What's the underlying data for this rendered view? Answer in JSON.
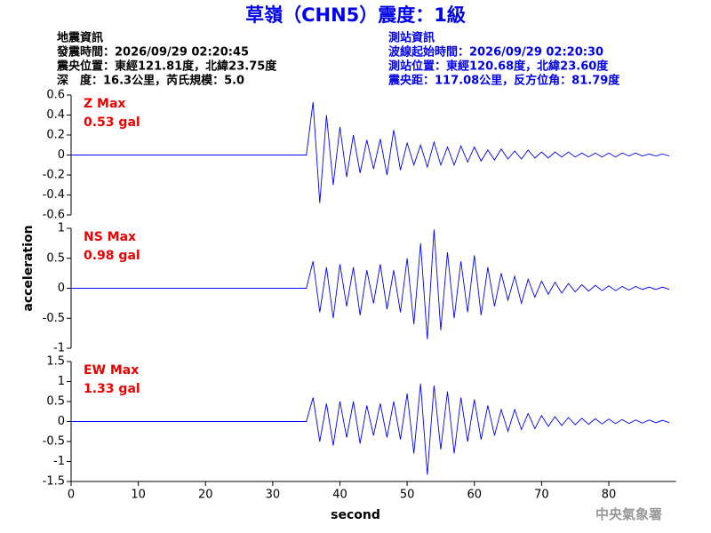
{
  "title": "草嶺（CHN5）震度：1級",
  "event_info": [
    "地震資訊",
    "發震時間：2026/09/29 02:20:45",
    "震央位置：東經121.81度，北緯23.75度",
    "深　度：16.3公里，芮氏規模：5.0"
  ],
  "station_info": [
    "測站資訊",
    "波線起始時間：2026/09/29 02:20:30",
    "測站位置：東經120.68度，北緯23.60度",
    "震央距：117.08公里，反方位角：81.79度"
  ],
  "y_label": "acceleration",
  "x_label": "second",
  "footer": "中央氣象署",
  "chart_data": [
    {
      "type": "line",
      "annotation": [
        "Z Max",
        "0.53 gal"
      ],
      "color": "#0000ff",
      "x": [
        0,
        35,
        36,
        37,
        38,
        39,
        40,
        41,
        42,
        43,
        44,
        45,
        46,
        47,
        48,
        49,
        50,
        51,
        52,
        53,
        54,
        55,
        56,
        57,
        58,
        59,
        60,
        61,
        62,
        63,
        64,
        65,
        66,
        67,
        68,
        69,
        70,
        71,
        72,
        73,
        74,
        75,
        76,
        77,
        78,
        79,
        80,
        81,
        82,
        83,
        84,
        85,
        86,
        87,
        88,
        89
      ],
      "values": [
        0,
        0,
        0.53,
        -0.48,
        0.4,
        -0.3,
        0.28,
        -0.22,
        0.2,
        -0.18,
        0.15,
        -0.14,
        0.16,
        -0.2,
        0.25,
        -0.15,
        0.12,
        -0.1,
        0.1,
        -0.12,
        0.13,
        -0.1,
        0.08,
        -0.1,
        0.09,
        -0.07,
        0.08,
        -0.06,
        0.05,
        -0.05,
        0.06,
        -0.04,
        0.04,
        -0.04,
        0.05,
        -0.03,
        0.03,
        -0.03,
        0.03,
        -0.02,
        0.03,
        -0.02,
        0.02,
        -0.02,
        0.02,
        -0.02,
        0.02,
        -0.02,
        0.02,
        -0.01,
        0.02,
        -0.01,
        0.01,
        -0.01,
        0.01,
        -0.01
      ],
      "xlim": [
        0,
        90
      ],
      "ylim": [
        -0.6,
        0.6
      ],
      "yticks": [
        -0.6,
        -0.4,
        -0.2,
        0,
        0.2,
        0.4,
        0.6
      ]
    },
    {
      "type": "line",
      "annotation": [
        "NS Max",
        "0.98 gal"
      ],
      "color": "#0000ff",
      "x": [
        0,
        35,
        36,
        37,
        38,
        39,
        40,
        41,
        42,
        43,
        44,
        45,
        46,
        47,
        48,
        49,
        50,
        51,
        52,
        53,
        54,
        55,
        56,
        57,
        58,
        59,
        60,
        61,
        62,
        63,
        64,
        65,
        66,
        67,
        68,
        69,
        70,
        71,
        72,
        73,
        74,
        75,
        76,
        77,
        78,
        79,
        80,
        81,
        82,
        83,
        84,
        85,
        86,
        87,
        88,
        89
      ],
      "values": [
        0,
        0,
        0.45,
        -0.4,
        0.35,
        -0.5,
        0.4,
        -0.3,
        0.35,
        -0.45,
        0.3,
        -0.25,
        0.4,
        -0.35,
        0.3,
        -0.4,
        0.5,
        -0.6,
        0.75,
        -0.85,
        0.98,
        -0.7,
        0.6,
        -0.5,
        0.45,
        -0.4,
        0.55,
        -0.45,
        0.35,
        -0.3,
        0.25,
        -0.2,
        0.2,
        -0.25,
        0.15,
        -0.15,
        0.12,
        -0.1,
        0.1,
        -0.08,
        0.08,
        -0.06,
        0.06,
        -0.05,
        0.05,
        -0.04,
        0.04,
        -0.04,
        0.03,
        -0.03,
        0.03,
        -0.02,
        0.02,
        -0.02,
        0.02,
        -0.02
      ],
      "xlim": [
        0,
        90
      ],
      "ylim": [
        -1,
        1
      ],
      "yticks": [
        -1,
        -0.5,
        0,
        0.5,
        1
      ]
    },
    {
      "type": "line",
      "annotation": [
        "EW Max",
        "1.33 gal"
      ],
      "color": "#0000ff",
      "x": [
        0,
        35,
        36,
        37,
        38,
        39,
        40,
        41,
        42,
        43,
        44,
        45,
        46,
        47,
        48,
        49,
        50,
        51,
        52,
        53,
        54,
        55,
        56,
        57,
        58,
        59,
        60,
        61,
        62,
        63,
        64,
        65,
        66,
        67,
        68,
        69,
        70,
        71,
        72,
        73,
        74,
        75,
        76,
        77,
        78,
        79,
        80,
        81,
        82,
        83,
        84,
        85,
        86,
        87,
        88,
        89
      ],
      "values": [
        0,
        0,
        0.6,
        -0.5,
        0.45,
        -0.6,
        0.5,
        -0.4,
        0.5,
        -0.55,
        0.4,
        -0.35,
        0.45,
        -0.4,
        0.5,
        -0.45,
        0.7,
        -0.8,
        0.95,
        -1.33,
        0.9,
        -0.7,
        0.75,
        -0.8,
        0.6,
        -0.5,
        0.55,
        -0.45,
        0.4,
        -0.35,
        0.3,
        -0.25,
        0.3,
        -0.2,
        0.2,
        -0.18,
        0.15,
        -0.12,
        0.12,
        -0.1,
        0.1,
        -0.08,
        0.08,
        -0.07,
        0.07,
        -0.06,
        0.06,
        -0.05,
        0.05,
        -0.05,
        0.04,
        -0.04,
        0.04,
        -0.03,
        0.03,
        -0.03
      ],
      "xlim": [
        0,
        90
      ],
      "ylim": [
        -1.5,
        1.5
      ],
      "yticks": [
        -1.5,
        -1,
        -0.5,
        0,
        0.5,
        1,
        1.5
      ],
      "xticks": [
        0,
        10,
        20,
        30,
        40,
        50,
        60,
        70,
        80
      ]
    }
  ]
}
